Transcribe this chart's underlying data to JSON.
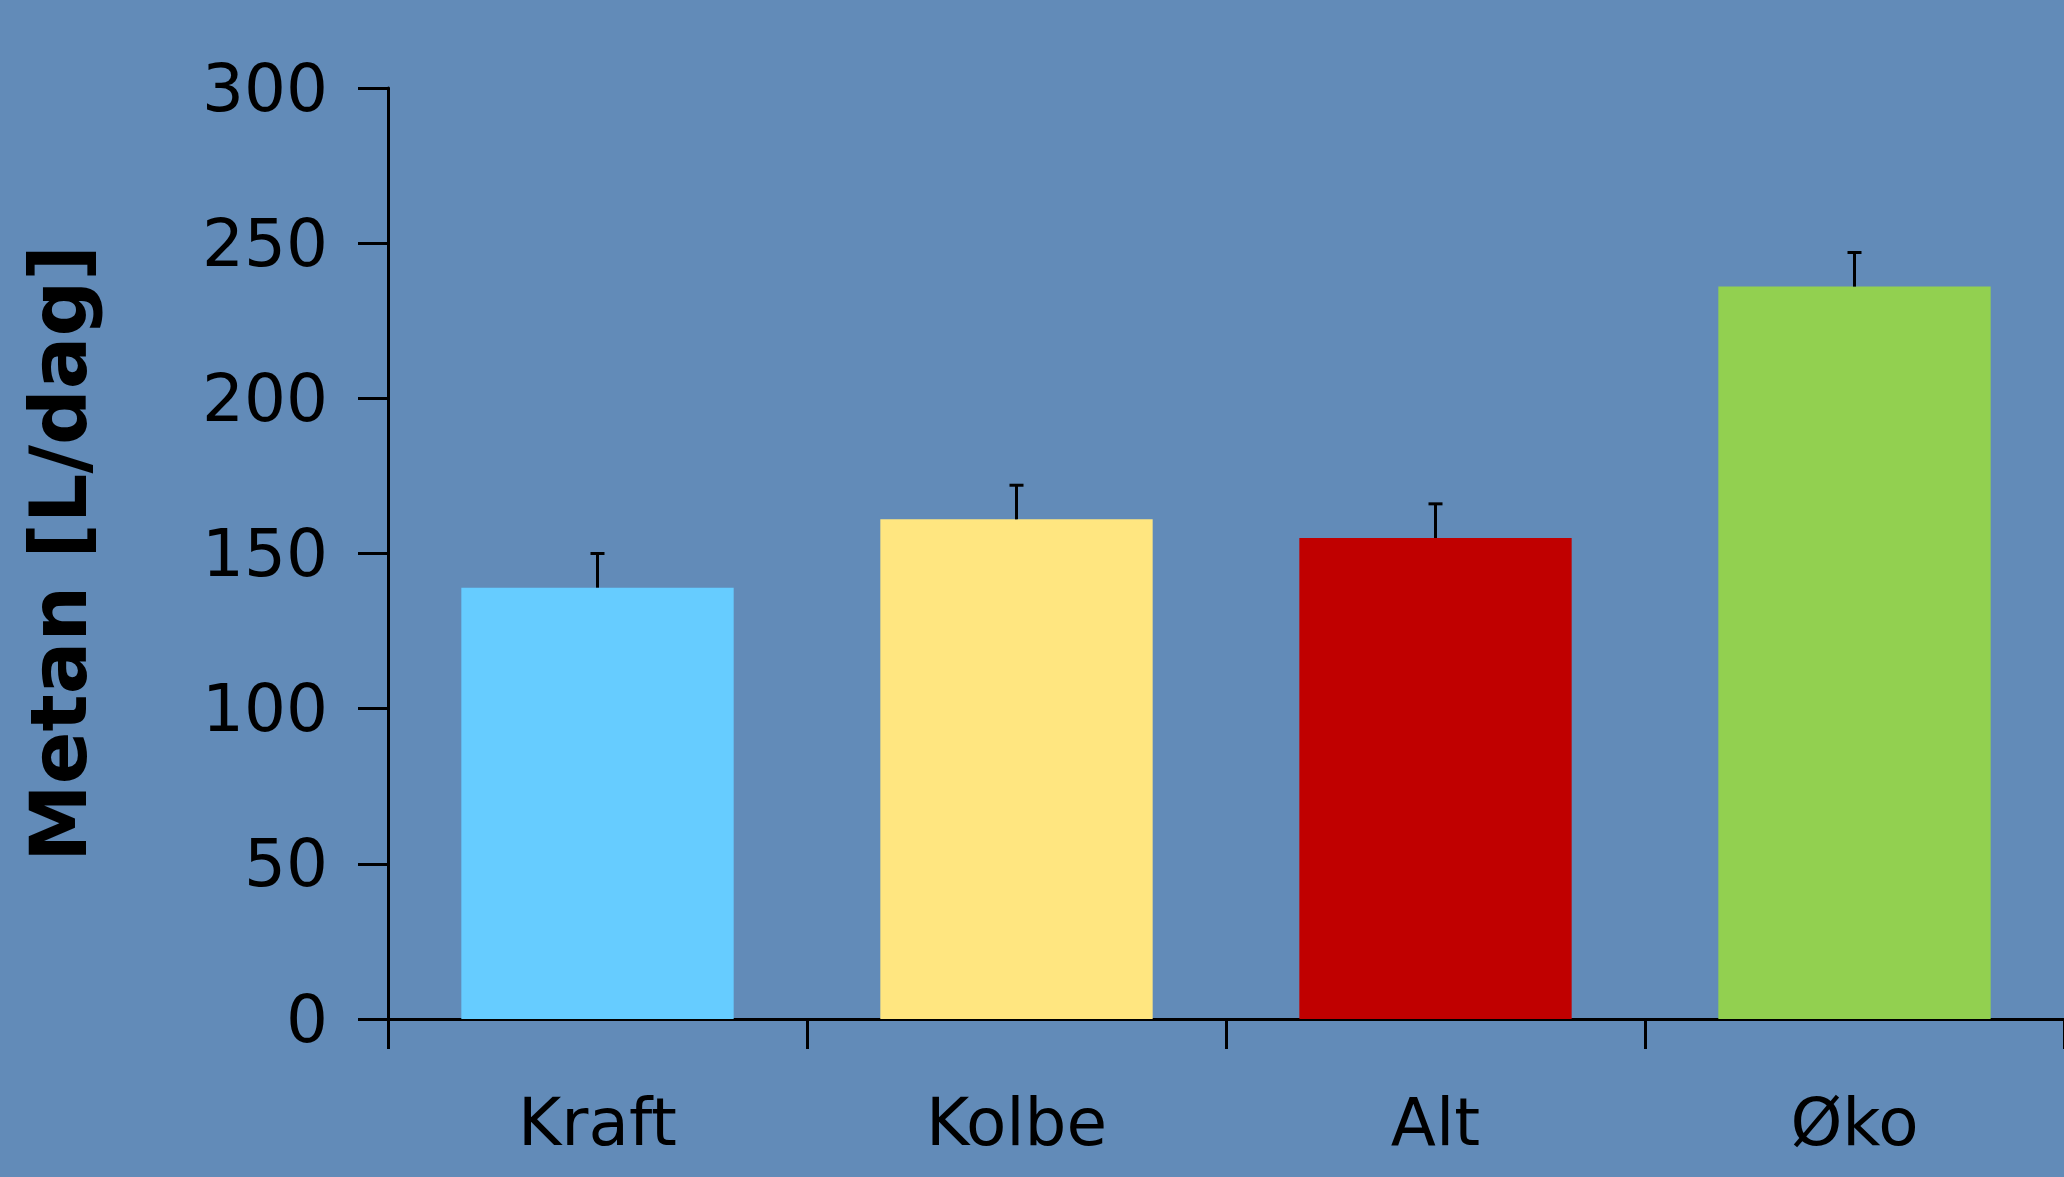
{
  "chart_data": {
    "type": "bar",
    "ylabel": "Metan [L/dag]",
    "categories": [
      "Kraft",
      "Kolbe",
      "Alt",
      "Øko"
    ],
    "values": [
      139,
      161,
      155,
      236
    ],
    "colors": [
      "#66ccff",
      "#ffe680",
      "#c00000",
      "#92d050"
    ],
    "errors": [
      [
        139,
        150
      ],
      [
        161,
        172
      ],
      [
        155,
        166
      ],
      [
        236,
        247
      ]
    ],
    "ylim": [
      0,
      300
    ],
    "yticks": [
      0,
      50,
      100,
      150,
      200,
      250,
      300
    ],
    "grid": false
  }
}
